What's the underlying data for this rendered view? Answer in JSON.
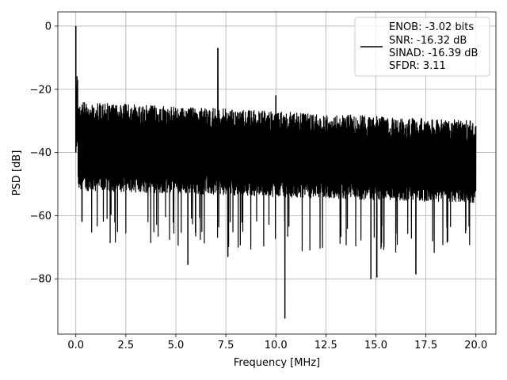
{
  "chart_data": {
    "type": "line",
    "xlabel": "Frequency [MHz]",
    "ylabel": "PSD [dB]",
    "xlim": [
      -0.9,
      21.0
    ],
    "ylim": [
      -97.5,
      4.5
    ],
    "grid": true,
    "x_ticks": [
      0.0,
      2.5,
      5.0,
      7.5,
      10.0,
      12.5,
      15.0,
      17.5,
      20.0
    ],
    "x_tick_labels": [
      "0.0",
      "2.5",
      "5.0",
      "7.5",
      "10.0",
      "12.5",
      "15.0",
      "17.5",
      "20.0"
    ],
    "y_ticks": [
      0,
      -20,
      -40,
      -60,
      -80
    ],
    "y_tick_labels": [
      "0",
      "−20",
      "−40",
      "−60",
      "−80"
    ],
    "legend_position": "top-right",
    "legend_lines": [
      "ENOB: -3.02 bits",
      "SNR: -16.32 dB",
      "SINAD: -16.39 dB",
      "SFDR: 3.11"
    ],
    "series": [
      {
        "color": "#000000",
        "x_range": [
          0,
          20
        ],
        "noise_floor": {
          "upper_envelope_start": -22,
          "upper_envelope_end": -28,
          "lower_envelope_start": -56,
          "lower_envelope_end": -60,
          "deep_dip_min": -92.5
        },
        "peaks": [
          {
            "x": 0.0,
            "y": 0
          },
          {
            "x": 7.1,
            "y": -7
          },
          {
            "x": 10.0,
            "y": -22
          }
        ],
        "dips": [
          {
            "x": 5.6,
            "y": -75.5
          },
          {
            "x": 7.6,
            "y": -73
          },
          {
            "x": 10.45,
            "y": -92.5
          },
          {
            "x": 14.75,
            "y": -80
          },
          {
            "x": 15.05,
            "y": -79.5
          },
          {
            "x": 17.0,
            "y": -78.5
          }
        ]
      }
    ]
  }
}
